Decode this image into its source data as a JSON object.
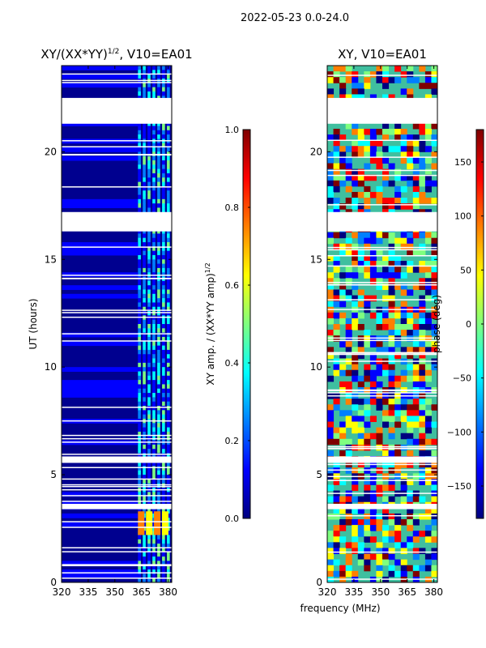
{
  "figure": {
    "suptitle": "2022-05-23 0.0-24.0",
    "xlabel": "frequency (MHz)"
  },
  "colormap": [
    "#00007f",
    "#0000ff",
    "#007fff",
    "#00ffff",
    "#7fff7f",
    "#ffff00",
    "#ff7f00",
    "#ff0000",
    "#7f0000"
  ],
  "chart_data": [
    {
      "type": "heatmap",
      "title_main": "XY/(XX*YY)",
      "title_sup": "1/2",
      "title_tail": ", V10=EA01",
      "ylabel": "UT (hours)",
      "xlim": [
        320,
        382
      ],
      "ylim": [
        0,
        24
      ],
      "xticks": [
        320,
        335,
        350,
        365,
        380
      ],
      "yticks": [
        0,
        5,
        10,
        15,
        20
      ],
      "gaps_hours": [
        [
          21.3,
          22.5
        ],
        [
          16.3,
          17.2
        ],
        [
          3.4,
          3.65
        ],
        [
          5.55,
          5.85
        ],
        [
          0.75,
          0.85
        ]
      ],
      "dominant_range": [
        0.0,
        0.1
      ],
      "bright_freq_band_mhz": [
        363,
        382
      ],
      "colorbar": {
        "label_main": "XY amp. / (XX*YY amp)",
        "label_sup": "1/2",
        "vmin": 0.0,
        "vmax": 1.0,
        "ticks": [
          "0.0",
          "0.2",
          "0.4",
          "0.6",
          "0.8",
          "1.0"
        ]
      }
    },
    {
      "type": "heatmap",
      "title": "XY, V10=EA01",
      "xlim": [
        320,
        382
      ],
      "ylim": [
        0,
        24
      ],
      "xticks": [
        320,
        335,
        350,
        365,
        380
      ],
      "yticks": [
        0,
        5,
        10,
        15,
        20
      ],
      "gaps_hours": [
        [
          21.3,
          22.5
        ],
        [
          16.3,
          17.2
        ],
        [
          3.4,
          3.65
        ],
        [
          5.55,
          5.85
        ]
      ],
      "colorbar": {
        "label": "phase (deg)",
        "vmin": -180,
        "vmax": 180,
        "ticks": [
          "−150",
          "−100",
          "−50",
          "0",
          "50",
          "100",
          "150"
        ]
      }
    }
  ]
}
